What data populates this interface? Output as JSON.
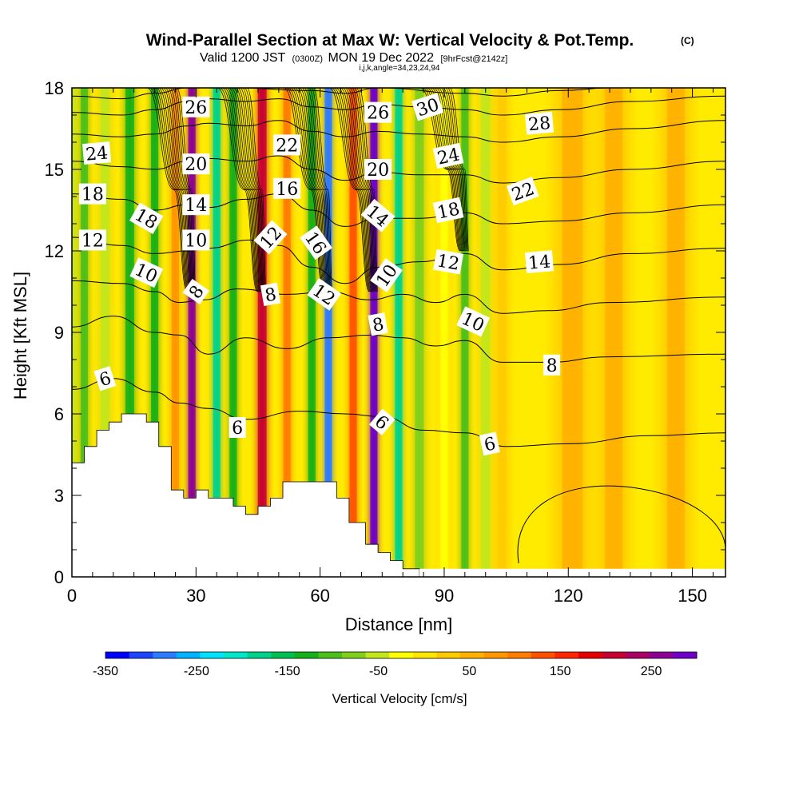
{
  "title": {
    "main": "Wind-Parallel Section at Max W: Vertical Velocity & Pot.Temp.",
    "tag": "(C)",
    "sub_prefix": "Valid 1200 JST",
    "sub_utc": "(0300Z)",
    "sub_date": "MON 19 Dec 2022",
    "sub_fcst": "[9hrFcst@2142z]",
    "params": "i,j,k,angle=34,23,24,94"
  },
  "colors": {
    "terrain": "#ffffff",
    "contour": "#000000",
    "background_field": "#ffeb00",
    "colorbar_steps": [
      "#0000ff",
      "#1d44ff",
      "#2d7bff",
      "#00b2ff",
      "#00e3ff",
      "#00e8c8",
      "#00d28c",
      "#00c052",
      "#18b018",
      "#4cbf1a",
      "#80cf1c",
      "#c3e61c",
      "#ffff00",
      "#ffe500",
      "#ffcb00",
      "#ffb100",
      "#ff9700",
      "#ff7d00",
      "#ff5200",
      "#ff2600",
      "#e60000",
      "#c80032",
      "#aa0064",
      "#8c0096",
      "#6e00c8"
    ]
  },
  "chart_data": {
    "type": "heatmap",
    "xlabel": "Distance [nm]",
    "ylabel": "Height [Kft MSL]",
    "xlim": [
      0,
      158
    ],
    "ylim": [
      0,
      18
    ],
    "xticks": [
      0,
      30,
      60,
      90,
      120,
      150
    ],
    "yticks": [
      0,
      3,
      6,
      9,
      12,
      15,
      18
    ],
    "colorbar": {
      "title": "Vertical Velocity [cm/s]",
      "min": -350,
      "max": 300,
      "step": 25,
      "tick_values": [
        -350,
        -250,
        -150,
        -50,
        50,
        150,
        250
      ],
      "tick_labels": [
        "-350",
        "-250",
        "-150",
        "-50",
        "50",
        "150",
        "250"
      ]
    },
    "vertical_velocity_columns": [
      {
        "x": 0,
        "w": 3,
        "value": -60
      },
      {
        "x": 3,
        "w": 2.5,
        "value": -110
      },
      {
        "x": 8,
        "w": 3,
        "value": -60
      },
      {
        "x": 14,
        "w": 3,
        "value": -130
      },
      {
        "x": 20,
        "w": 2.5,
        "value": -150
      },
      {
        "x": 25,
        "w": 2.5,
        "value": 60
      },
      {
        "x": 29,
        "w": 2.5,
        "value": 230
      },
      {
        "x": 35,
        "w": 2.5,
        "value": -200
      },
      {
        "x": 39,
        "w": 2.5,
        "value": -130
      },
      {
        "x": 46,
        "w": 3,
        "value": 190
      },
      {
        "x": 52,
        "w": 2.5,
        "value": 80
      },
      {
        "x": 58,
        "w": 2.5,
        "value": -150
      },
      {
        "x": 62,
        "w": 2.5,
        "value": -280
      },
      {
        "x": 68,
        "w": 2.5,
        "value": 120
      },
      {
        "x": 73,
        "w": 2.5,
        "value": 290
      },
      {
        "x": 79,
        "w": 2.5,
        "value": -200
      },
      {
        "x": 84,
        "w": 3,
        "value": -90
      },
      {
        "x": 90,
        "w": 2.5,
        "value": -40
      },
      {
        "x": 95,
        "w": 2.5,
        "value": -110
      },
      {
        "x": 100,
        "w": 3,
        "value": -60
      },
      {
        "x": 104,
        "w": 3,
        "value": 20
      },
      {
        "x": 121,
        "w": 7,
        "value": 40
      },
      {
        "x": 131,
        "w": 6,
        "value": 30
      },
      {
        "x": 146,
        "w": 6,
        "value": 30
      }
    ],
    "terrain_profile": [
      [
        0,
        4.2
      ],
      [
        3,
        4.2
      ],
      [
        3,
        4.8
      ],
      [
        6,
        4.8
      ],
      [
        6,
        5.4
      ],
      [
        9,
        5.4
      ],
      [
        9,
        5.7
      ],
      [
        12,
        5.7
      ],
      [
        12,
        6.0
      ],
      [
        18,
        6.0
      ],
      [
        18,
        5.7
      ],
      [
        21,
        5.7
      ],
      [
        21,
        4.8
      ],
      [
        24,
        4.8
      ],
      [
        24,
        3.2
      ],
      [
        27,
        3.2
      ],
      [
        27,
        2.9
      ],
      [
        30,
        2.9
      ],
      [
        30,
        3.2
      ],
      [
        33,
        3.2
      ],
      [
        33,
        2.9
      ],
      [
        39,
        2.9
      ],
      [
        39,
        2.6
      ],
      [
        42,
        2.6
      ],
      [
        42,
        2.3
      ],
      [
        45,
        2.3
      ],
      [
        45,
        2.6
      ],
      [
        48,
        2.6
      ],
      [
        48,
        2.9
      ],
      [
        51,
        2.9
      ],
      [
        51,
        3.5
      ],
      [
        64,
        3.5
      ],
      [
        64,
        2.9
      ],
      [
        67,
        2.9
      ],
      [
        67,
        2.0
      ],
      [
        71,
        2.0
      ],
      [
        71,
        1.2
      ],
      [
        74,
        1.2
      ],
      [
        74,
        0.9
      ],
      [
        77,
        0.9
      ],
      [
        77,
        0.6
      ],
      [
        80,
        0.6
      ],
      [
        80,
        0.3
      ],
      [
        84,
        0.3
      ],
      [
        84,
        0.0
      ]
    ],
    "potential_temperature_contours": [
      {
        "value": 6,
        "points": [
          [
            0,
            6.9
          ],
          [
            10,
            7.3
          ],
          [
            20,
            6.8
          ],
          [
            26,
            6.4
          ],
          [
            33,
            6.2
          ],
          [
            42,
            5.8
          ],
          [
            55,
            6.1
          ],
          [
            66,
            6.0
          ],
          [
            75,
            5.9
          ],
          [
            85,
            5.4
          ],
          [
            95,
            5.3
          ],
          [
            105,
            4.8
          ],
          [
            120,
            4.9
          ],
          [
            140,
            5.2
          ],
          [
            158,
            5.3
          ]
        ]
      },
      {
        "value": 8,
        "points": [
          [
            0,
            9.2
          ],
          [
            10,
            9.6
          ],
          [
            20,
            9.0
          ],
          [
            26,
            8.9
          ],
          [
            33,
            8.2
          ],
          [
            42,
            8.8
          ],
          [
            52,
            8.4
          ],
          [
            62,
            8.8
          ],
          [
            72,
            8.9
          ],
          [
            80,
            8.8
          ],
          [
            88,
            8.5
          ],
          [
            95,
            8.7
          ],
          [
            104,
            7.9
          ],
          [
            115,
            7.9
          ],
          [
            130,
            8.1
          ],
          [
            158,
            8.2
          ]
        ]
      },
      {
        "value": 10,
        "points": [
          [
            0,
            10.9
          ],
          [
            12,
            10.8
          ],
          [
            20,
            10.5
          ],
          [
            26,
            10.1
          ],
          [
            32,
            10.2
          ],
          [
            40,
            10.6
          ],
          [
            52,
            10.4
          ],
          [
            62,
            10.5
          ],
          [
            72,
            10.2
          ],
          [
            80,
            10.4
          ],
          [
            88,
            10.1
          ],
          [
            95,
            10.4
          ],
          [
            104,
            9.7
          ],
          [
            115,
            9.8
          ],
          [
            130,
            10.1
          ],
          [
            158,
            10.3
          ]
        ]
      },
      {
        "value": 12,
        "points": [
          [
            0,
            12.5
          ],
          [
            12,
            12.2
          ],
          [
            20,
            11.9
          ],
          [
            28,
            12.0
          ],
          [
            33,
            12.1
          ],
          [
            43,
            12.4
          ],
          [
            50,
            12.2
          ],
          [
            58,
            11.4
          ],
          [
            66,
            10.8
          ],
          [
            74,
            11.4
          ],
          [
            84,
            11.6
          ],
          [
            95,
            11.9
          ],
          [
            104,
            11.3
          ],
          [
            118,
            11.5
          ],
          [
            135,
            11.9
          ],
          [
            158,
            12.1
          ]
        ]
      },
      {
        "value": 14,
        "points": [
          [
            0,
            14.1
          ],
          [
            12,
            13.9
          ],
          [
            20,
            13.5
          ],
          [
            28,
            13.7
          ],
          [
            33,
            13.6
          ],
          [
            42,
            13.9
          ],
          [
            50,
            14.1
          ],
          [
            58,
            13.5
          ],
          [
            66,
            12.9
          ],
          [
            74,
            13.2
          ],
          [
            84,
            13.2
          ],
          [
            95,
            13.4
          ],
          [
            104,
            13.0
          ],
          [
            118,
            13.1
          ],
          [
            135,
            13.4
          ],
          [
            158,
            13.7
          ]
        ]
      },
      {
        "value": 16,
        "points": [
          [
            0,
            15.3
          ],
          [
            12,
            15.1
          ],
          [
            20,
            15.0
          ],
          [
            28,
            15.3
          ],
          [
            33,
            15.4
          ],
          [
            42,
            15.3
          ],
          [
            50,
            15.5
          ],
          [
            58,
            15.0
          ],
          [
            66,
            14.6
          ],
          [
            74,
            14.9
          ],
          [
            84,
            14.8
          ],
          [
            95,
            14.8
          ],
          [
            104,
            14.5
          ],
          [
            118,
            14.7
          ],
          [
            135,
            15.0
          ],
          [
            158,
            15.3
          ]
        ]
      },
      {
        "value": 18,
        "points": [
          [
            0,
            16.3
          ],
          [
            12,
            16.2
          ],
          [
            20,
            16.3
          ],
          [
            28,
            16.6
          ],
          [
            33,
            16.7
          ],
          [
            42,
            16.6
          ],
          [
            50,
            16.8
          ],
          [
            58,
            16.4
          ],
          [
            66,
            16.2
          ],
          [
            74,
            16.4
          ],
          [
            84,
            16.3
          ],
          [
            95,
            16.2
          ],
          [
            104,
            16.0
          ],
          [
            118,
            16.2
          ],
          [
            135,
            16.5
          ],
          [
            158,
            16.8
          ]
        ]
      },
      {
        "value": 20,
        "points": [
          [
            0,
            17.1
          ],
          [
            12,
            17.0
          ],
          [
            20,
            17.2
          ],
          [
            28,
            17.5
          ],
          [
            33,
            17.6
          ],
          [
            42,
            17.5
          ],
          [
            50,
            17.6
          ],
          [
            58,
            17.3
          ],
          [
            66,
            17.2
          ],
          [
            74,
            17.4
          ],
          [
            84,
            17.3
          ],
          [
            95,
            17.2
          ],
          [
            104,
            17.0
          ],
          [
            118,
            17.2
          ],
          [
            135,
            17.5
          ],
          [
            158,
            17.7
          ]
        ]
      },
      {
        "value": 22,
        "points": [
          [
            0,
            17.7
          ],
          [
            12,
            17.6
          ],
          [
            20,
            17.8
          ],
          [
            28,
            18.0
          ],
          [
            40,
            18.0
          ],
          [
            58,
            17.9
          ],
          [
            66,
            17.8
          ],
          [
            74,
            18.0
          ],
          [
            95,
            17.8
          ],
          [
            104,
            17.7
          ],
          [
            118,
            17.9
          ],
          [
            130,
            18.0
          ]
        ]
      }
    ],
    "contour_labels": [
      "24",
      "18",
      "12",
      "10",
      "6",
      "18",
      "26",
      "20",
      "14",
      "10",
      "8",
      "6",
      "22",
      "16",
      "12",
      "8",
      "16",
      "12",
      "26",
      "20",
      "14",
      "10",
      "8",
      "6",
      "30",
      "24",
      "18",
      "12",
      "10",
      "6",
      "28",
      "22",
      "14",
      "8"
    ]
  }
}
